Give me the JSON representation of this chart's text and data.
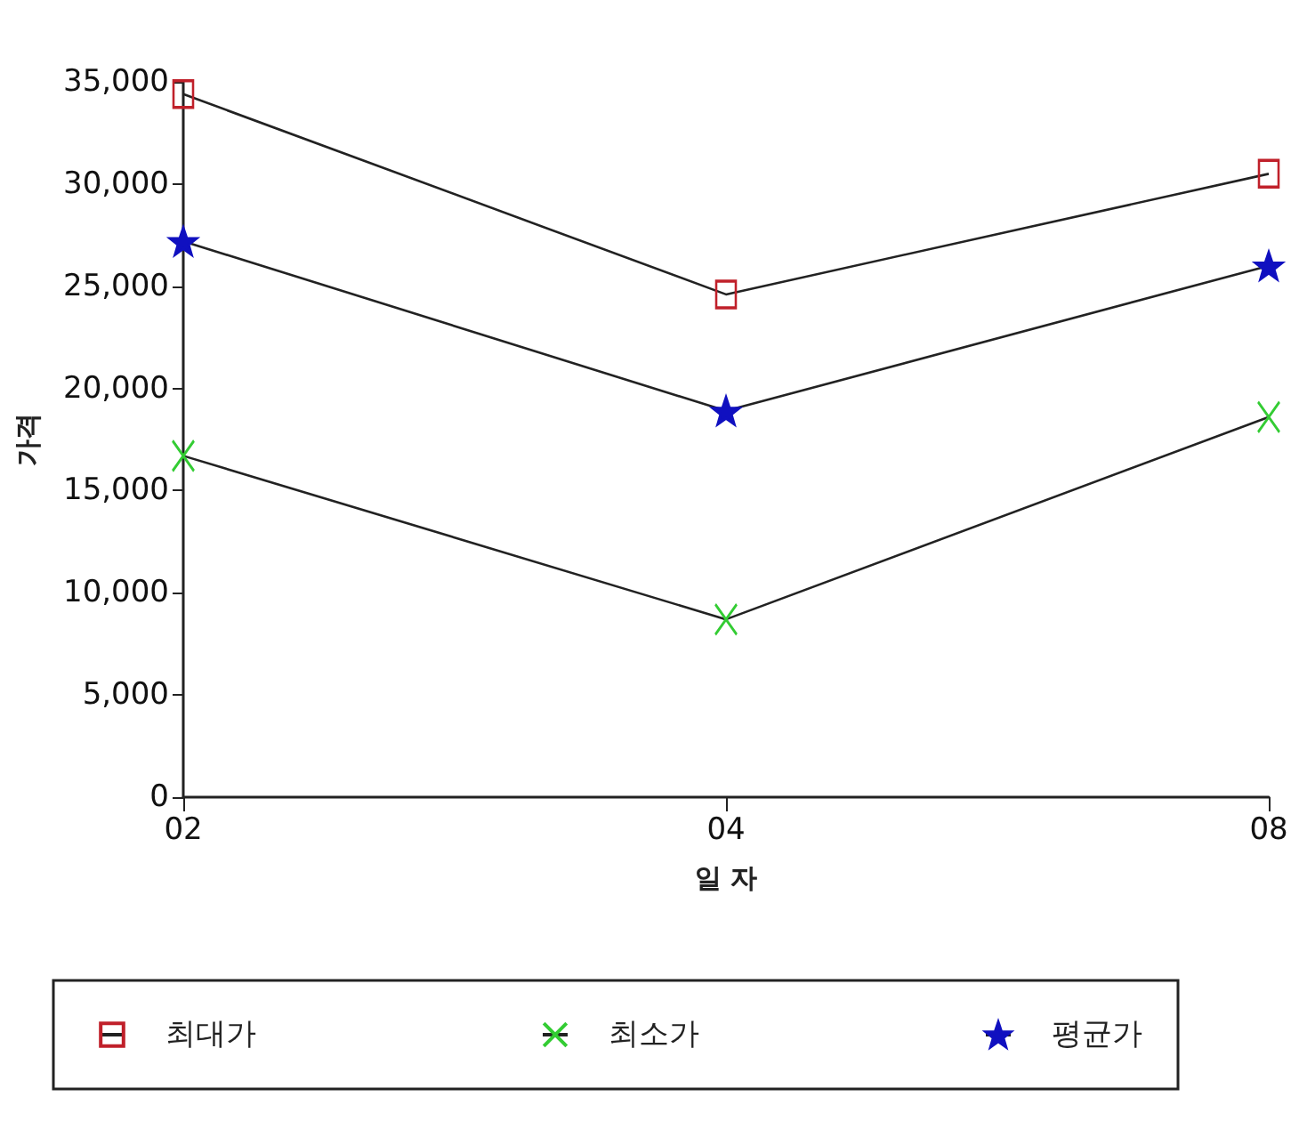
{
  "chart_data": {
    "type": "line",
    "xlabel": "일 자",
    "ylabel": "가격",
    "categories": [
      "02",
      "04",
      "08"
    ],
    "series": [
      {
        "name": "최대가",
        "color": "#c0202a",
        "marker": "square",
        "values": [
          34400,
          24600,
          30500
        ]
      },
      {
        "name": "최소가",
        "color": "#33cc33",
        "marker": "cross",
        "values": [
          16700,
          8700,
          18600
        ]
      },
      {
        "name": "평균가",
        "color": "#1010c0",
        "marker": "star",
        "values": [
          27200,
          18900,
          26000
        ]
      }
    ],
    "ylim": [
      0,
      35000
    ],
    "yticks": [
      0,
      {
        "value": 5000,
        "label": "5,000"
      },
      {
        "value": 10000,
        "label": "10,000"
      },
      {
        "value": 15000,
        "label": "15,000"
      },
      {
        "value": 20000,
        "label": "20,000"
      },
      {
        "value": 25000,
        "label": "25,000"
      },
      {
        "value": 30000,
        "label": "30,000"
      },
      {
        "value": 35000,
        "label": "35,000"
      }
    ],
    "grid": false,
    "legend": "bottom",
    "line_style": "solid"
  }
}
